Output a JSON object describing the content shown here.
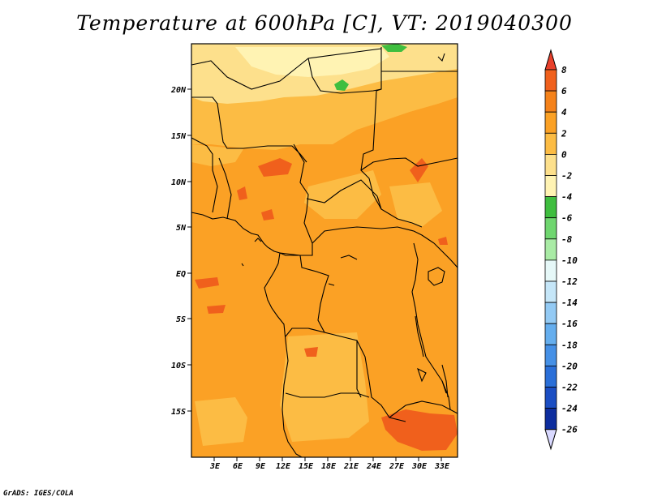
{
  "title": "Temperature at 600hPa [C], VT: 2019040300",
  "credit": "GrADS: IGES/COLA",
  "map": {
    "lat_ticks": [
      "20N",
      "15N",
      "10N",
      "5N",
      "EQ",
      "5S",
      "10S",
      "15S"
    ],
    "lon_ticks": [
      "3E",
      "6E",
      "9E",
      "12E",
      "15E",
      "18E",
      "21E",
      "24E",
      "27E",
      "30E",
      "33E"
    ]
  },
  "colorbar": {
    "labels": [
      "8",
      "6",
      "4",
      "2",
      "0",
      "-2",
      "-4",
      "-6",
      "-8",
      "-10",
      "-12",
      "-14",
      "-16",
      "-18",
      "-20",
      "-22",
      "-24",
      "-26"
    ],
    "colors": [
      "#e8402b",
      "#f0601c",
      "#f5821a",
      "#fba125",
      "#fcbc44",
      "#fde08c",
      "#fff3b3",
      "#3fbe3f",
      "#6fd66f",
      "#a9eba5",
      "#e6f8f8",
      "#c5e6f8",
      "#93caf4",
      "#65aeee",
      "#4590e6",
      "#2a6fd8",
      "#1b4ec3",
      "#0d2d9e",
      "#0c1a75",
      "#d9d9ff"
    ]
  }
}
